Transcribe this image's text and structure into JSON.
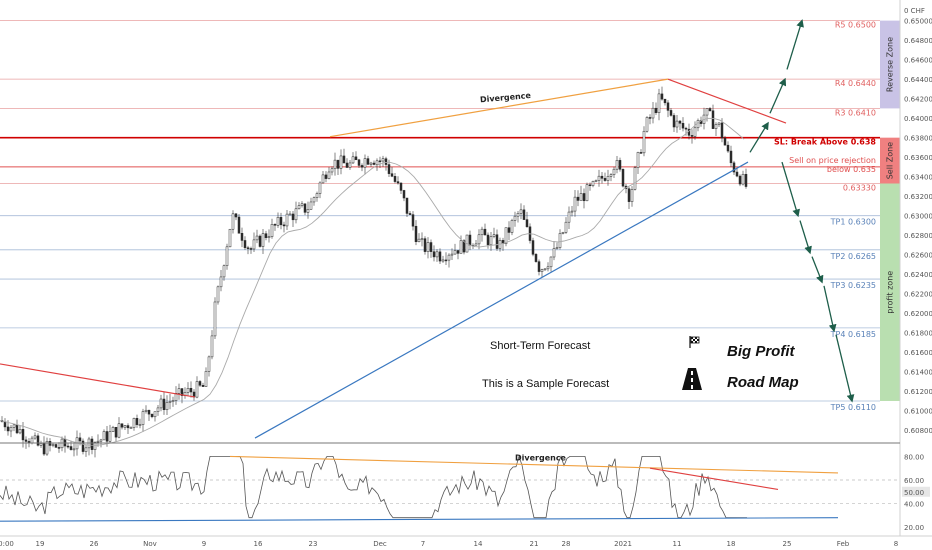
{
  "chart_data": {
    "type": "candlestick",
    "instrument_currency": "CHF",
    "price_axis": {
      "ylim": [
        0.607,
        0.6515
      ],
      "ticks": [
        "0.65000",
        "0.64800",
        "0.64600",
        "0.64400",
        "0.64200",
        "0.64000",
        "0.63800",
        "0.63600",
        "0.63400",
        "0.63200",
        "0.63000",
        "0.62800",
        "0.62600",
        "0.62400",
        "0.62200",
        "0.62000",
        "0.61800",
        "0.61600",
        "0.61400",
        "0.61200",
        "0.61000",
        "0.60800"
      ],
      "tick_values": [
        0.65,
        0.648,
        0.646,
        0.644,
        0.642,
        0.64,
        0.638,
        0.636,
        0.634,
        0.632,
        0.63,
        0.628,
        0.626,
        0.624,
        0.622,
        0.62,
        0.618,
        0.616,
        0.614,
        0.612,
        0.61,
        0.608
      ],
      "current_value": "0 CHF"
    },
    "time_axis": {
      "labels": [
        "0:00",
        "19",
        "26",
        "Nov",
        "9",
        "16",
        "23",
        "Dec",
        "7",
        "14",
        "21",
        "28",
        "2021",
        "11",
        "18",
        "25",
        "Feb",
        "8"
      ]
    },
    "levels": [
      {
        "label": "R5 0.6500",
        "value": 0.65,
        "color": "#e8a0a0",
        "label_color": "#e06060"
      },
      {
        "label": "R4 0.6440",
        "value": 0.644,
        "color": "#e8a0a0",
        "label_color": "#e06060"
      },
      {
        "label": "R3 0.6410",
        "value": 0.641,
        "color": "#e8a0a0",
        "label_color": "#e06060"
      },
      {
        "label": "SL: Break Above 0.638",
        "value": 0.638,
        "color": "#d00000",
        "label_color": "#d00000"
      },
      {
        "label": "Sell on price rejection below 0.635",
        "value": 0.635,
        "color": "#e05050",
        "label_color": "#e05050"
      },
      {
        "label": "0.63330",
        "value": 0.6333,
        "color": "#e8a0a0",
        "label_color": "#e06060"
      },
      {
        "label": "TP1 0.6300",
        "value": 0.63,
        "color": "#a8bcd8",
        "label_color": "#5a82b8"
      },
      {
        "label": "TP2 0.6265",
        "value": 0.6265,
        "color": "#a8bcd8",
        "label_color": "#5a82b8"
      },
      {
        "label": "TP3 0.6235",
        "value": 0.6235,
        "color": "#a8bcd8",
        "label_color": "#5a82b8"
      },
      {
        "label": "TP4 0.6185",
        "value": 0.6185,
        "color": "#a8bcd8",
        "label_color": "#5a82b8"
      },
      {
        "label": "TP5 0.6110",
        "value": 0.611,
        "color": "#a8bcd8",
        "label_color": "#5a82b8"
      }
    ],
    "zones": [
      {
        "label": "Reverse Zone",
        "from": 0.641,
        "to": 0.65,
        "color": "#c9c3e6"
      },
      {
        "label": "Sell Zone",
        "from": 0.6333,
        "to": 0.638,
        "color": "#f08080"
      },
      {
        "label": "profit zone",
        "from": 0.611,
        "to": 0.6333,
        "color": "#b9dfb0"
      }
    ],
    "annotations": {
      "divergence_price": "Divergence",
      "divergence_rsi": "Divergence",
      "short_term": "Short-Term Forecast",
      "sample": "This is a Sample Forecast",
      "big_profit": "Big Profit",
      "road_map": "Road Map"
    },
    "rsi": {
      "ticks": [
        "80.00",
        "60.00",
        "50.00",
        "40.00",
        "20.00"
      ],
      "tick_values": [
        80,
        60,
        50,
        40,
        20
      ],
      "ylim": [
        15,
        88
      ],
      "current_value": "50.00"
    },
    "colors": {
      "bull": "#2a2a2a",
      "bear": "#2a2a2a",
      "trend_up": "#3a78c0",
      "trend_down": "#e04040",
      "divergence": "#f0a040",
      "forecast_up": "#1e5e4a",
      "forecast_down": "#1e5e4a",
      "ma": "#aaaaaa"
    }
  }
}
